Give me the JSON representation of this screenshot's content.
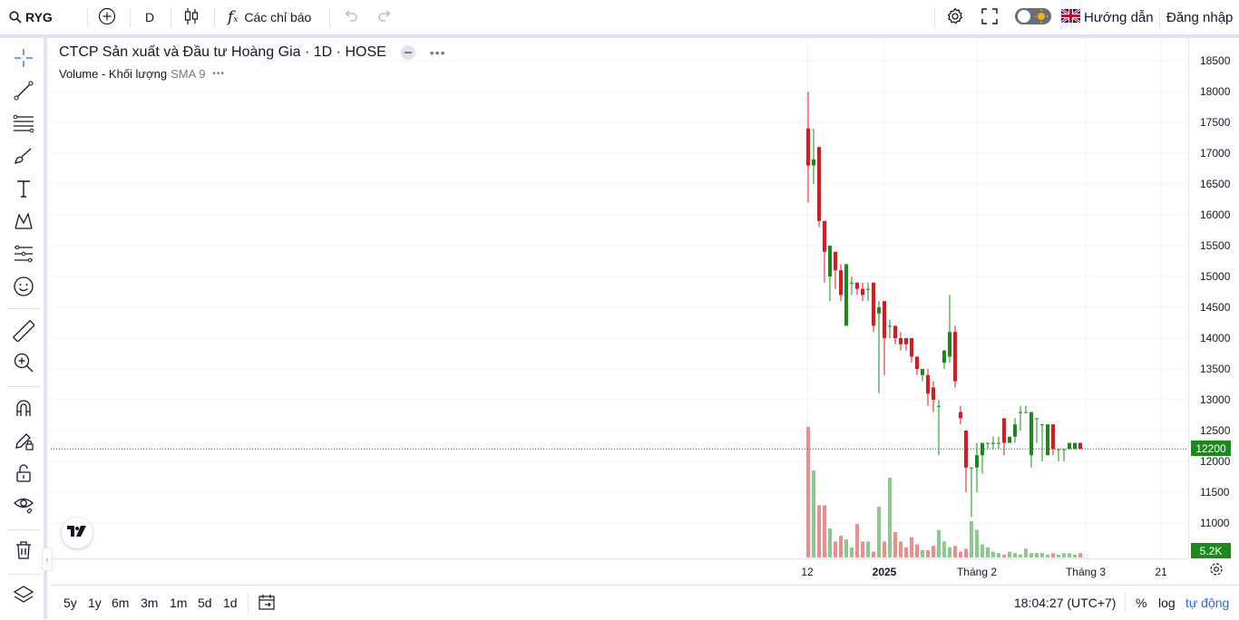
{
  "topbar": {
    "symbol": "RYG",
    "interval": "D",
    "indicators_label": "Các chỉ báo",
    "guide_label": "Hướng dẫn",
    "login_label": "Đăng nhập"
  },
  "legend": {
    "title": "CTCP Sản xuất và Đầu tư Hoàng Gia · 1D · HOSE",
    "volume_label": "Volume - Khối lượng",
    "volume_sma": "SMA 9"
  },
  "badges": {
    "last_price": "12200",
    "last_volume": "5.2K"
  },
  "colors": {
    "up": "#089981",
    "down": "#f23645",
    "candle_up": "#1b8a1b",
    "candle_down": "#e3161c",
    "accent": "#2962ff"
  },
  "bottombar": {
    "ranges": [
      "5y",
      "1y",
      "6m",
      "3m",
      "1m",
      "5d",
      "1d"
    ],
    "time": "18:04:27 (UTC+7)",
    "percent": "%",
    "log": "log",
    "auto": "tự động"
  },
  "chart_data": {
    "type": "candlestick",
    "y_ticks": [
      "18500",
      "18000",
      "17500",
      "17000",
      "16500",
      "16000",
      "15500",
      "15000",
      "14500",
      "14000",
      "13500",
      "13000",
      "12500",
      "12000",
      "11500",
      "11000"
    ],
    "x_ticks": [
      "12",
      "2025",
      "Tháng 2",
      "Tháng 3",
      "21"
    ],
    "ylim": [
      10800,
      18600
    ],
    "candles": [
      {
        "o": 17400,
        "h": 18000,
        "l": 16200,
        "c": 16800
      },
      {
        "o": 16800,
        "h": 17400,
        "l": 16500,
        "c": 16900
      },
      {
        "o": 17100,
        "h": 17100,
        "l": 15800,
        "c": 15900
      },
      {
        "o": 15900,
        "h": 15900,
        "l": 14900,
        "c": 15400
      },
      {
        "o": 15000,
        "h": 15500,
        "l": 14600,
        "c": 15500
      },
      {
        "o": 15400,
        "h": 15400,
        "l": 14800,
        "c": 15100
      },
      {
        "o": 15100,
        "h": 15200,
        "l": 14600,
        "c": 14700
      },
      {
        "o": 14200,
        "h": 15200,
        "l": 14200,
        "c": 15200
      },
      {
        "o": 14900,
        "h": 15000,
        "l": 14700,
        "c": 14900
      },
      {
        "o": 14900,
        "h": 14900,
        "l": 14700,
        "c": 14800
      },
      {
        "o": 14800,
        "h": 14900,
        "l": 14600,
        "c": 14700
      },
      {
        "o": 14800,
        "h": 14900,
        "l": 14600,
        "c": 14800
      },
      {
        "o": 14900,
        "h": 14900,
        "l": 14100,
        "c": 14200
      },
      {
        "o": 14400,
        "h": 14600,
        "l": 13100,
        "c": 14500
      },
      {
        "o": 14600,
        "h": 14600,
        "l": 13400,
        "c": 14000
      },
      {
        "o": 14200,
        "h": 14300,
        "l": 14000,
        "c": 14200
      },
      {
        "o": 14200,
        "h": 14200,
        "l": 13900,
        "c": 14000
      },
      {
        "o": 14000,
        "h": 14100,
        "l": 13800,
        "c": 13900
      },
      {
        "o": 14000,
        "h": 14000,
        "l": 13800,
        "c": 13900
      },
      {
        "o": 14000,
        "h": 14000,
        "l": 13600,
        "c": 13700
      },
      {
        "o": 13700,
        "h": 13700,
        "l": 13400,
        "c": 13500
      },
      {
        "o": 13400,
        "h": 13500,
        "l": 13300,
        "c": 13500
      },
      {
        "o": 13400,
        "h": 13500,
        "l": 12900,
        "c": 13100
      },
      {
        "o": 13200,
        "h": 13300,
        "l": 12800,
        "c": 13000
      },
      {
        "o": 12900,
        "h": 13000,
        "l": 12100,
        "c": 12900
      },
      {
        "o": 13600,
        "h": 13800,
        "l": 13500,
        "c": 13800
      },
      {
        "o": 13700,
        "h": 14700,
        "l": 13600,
        "c": 14100
      },
      {
        "o": 14100,
        "h": 14200,
        "l": 13200,
        "c": 13300
      },
      {
        "o": 12800,
        "h": 12900,
        "l": 12600,
        "c": 12700
      },
      {
        "o": 12500,
        "h": 12500,
        "l": 11500,
        "c": 11900
      },
      {
        "o": 11900,
        "h": 11900,
        "l": 11100,
        "c": 11900
      },
      {
        "o": 11900,
        "h": 12300,
        "l": 11500,
        "c": 12100
      },
      {
        "o": 12100,
        "h": 12300,
        "l": 11800,
        "c": 12300
      },
      {
        "o": 12300,
        "h": 12300,
        "l": 12200,
        "c": 12300
      },
      {
        "o": 12300,
        "h": 12400,
        "l": 12200,
        "c": 12300
      },
      {
        "o": 12300,
        "h": 12400,
        "l": 12200,
        "c": 12300
      },
      {
        "o": 12700,
        "h": 12700,
        "l": 12100,
        "c": 12300
      },
      {
        "o": 12300,
        "h": 12400,
        "l": 12300,
        "c": 12400
      },
      {
        "o": 12400,
        "h": 12700,
        "l": 12300,
        "c": 12600
      },
      {
        "o": 12800,
        "h": 12900,
        "l": 12500,
        "c": 12800
      },
      {
        "o": 12800,
        "h": 12900,
        "l": 12800,
        "c": 12800
      },
      {
        "o": 12100,
        "h": 12800,
        "l": 11900,
        "c": 12800
      },
      {
        "o": 12700,
        "h": 12700,
        "l": 12300,
        "c": 12700
      },
      {
        "o": 12600,
        "h": 12600,
        "l": 12000,
        "c": 12600
      },
      {
        "o": 12100,
        "h": 12600,
        "l": 12100,
        "c": 12600
      },
      {
        "o": 12600,
        "h": 12600,
        "l": 12100,
        "c": 12200
      },
      {
        "o": 12200,
        "h": 12200,
        "l": 12000,
        "c": 12200
      },
      {
        "o": 12200,
        "h": 12200,
        "l": 12000,
        "c": 12200
      },
      {
        "o": 12200,
        "h": 12300,
        "l": 12200,
        "c": 12300
      },
      {
        "o": 12200,
        "h": 12300,
        "l": 12200,
        "c": 12300
      },
      {
        "o": 12300,
        "h": 12300,
        "l": 12200,
        "c": 12200
      }
    ],
    "volumes": [
      180,
      120,
      72,
      72,
      40,
      22,
      30,
      25,
      14,
      46,
      22,
      22,
      8,
      70,
      22,
      110,
      35,
      22,
      14,
      28,
      18,
      10,
      10,
      16,
      38,
      22,
      14,
      16,
      8,
      12,
      50,
      38,
      18,
      14,
      8,
      6,
      4,
      8,
      6,
      4,
      12,
      6,
      6,
      6,
      4,
      6,
      4,
      6,
      6,
      4,
      6
    ],
    "volume_ylim": [
      0,
      200
    ]
  }
}
